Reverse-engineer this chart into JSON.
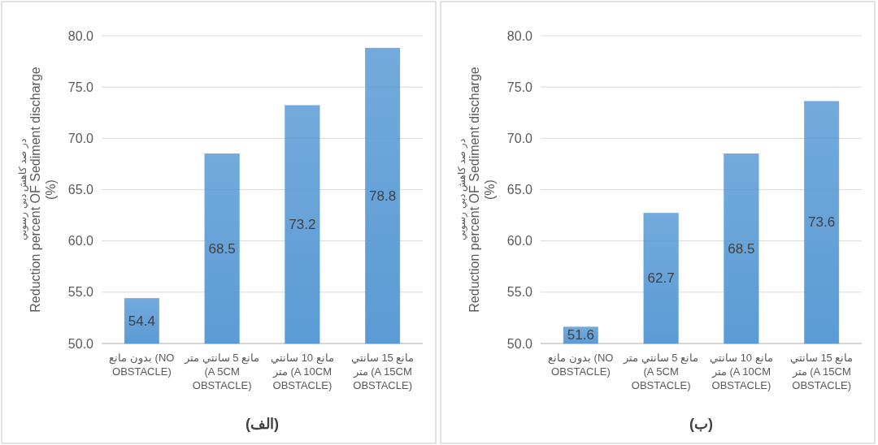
{
  "chart_data": [
    {
      "type": "bar",
      "title": "(الف)",
      "ylabel": "در صد كاهش دبي رسوبي\nReduction percent OF Sediment discharge\n(%)",
      "categories": [
        "بدون مانع (NO OBSTACLE)",
        "مانع 5 سانتي متر (A 5CM OBSTACLE)",
        "مانع 10 سانتي متر (A 10CM OBSTACLE)",
        "مانع 15 سانتي متر (A 15CM OBSTACLE)"
      ],
      "values": [
        54.4,
        68.5,
        73.2,
        78.8
      ],
      "color": "#5b9bd5",
      "data_labels": true,
      "grid": "y",
      "ylim": [
        50,
        80
      ],
      "yticks": [
        {
          "value": 50,
          "label": "50.0"
        },
        {
          "value": 55,
          "label": "55.0"
        },
        {
          "value": 60,
          "label": "60.0"
        },
        {
          "value": 65,
          "label": "65.0"
        },
        {
          "value": 70,
          "label": "70.0"
        },
        {
          "value": 75,
          "label": "75.0"
        },
        {
          "value": 80,
          "label": "80.0"
        }
      ]
    },
    {
      "type": "bar",
      "title": "(ب)",
      "ylabel": "در صد كاهش دبي رسوبي\nReduction percent OF Sediment discharge\n(%)",
      "categories": [
        "بدون مانع (NO OBSTACLE)",
        "مانع 5 سانتي متر (A 5CM OBSTACLE)",
        "مانع 10 سانتي متر (A 10CM OBSTACLE)",
        "مانع 15 سانتي متر (A 15CM OBSTACLE)"
      ],
      "values": [
        51.6,
        62.7,
        68.5,
        73.6
      ],
      "color": "#5b9bd5",
      "data_labels": true,
      "grid": "y",
      "ylim": [
        50,
        80
      ],
      "yticks": [
        {
          "value": 50,
          "label": "50.0"
        },
        {
          "value": 55,
          "label": "55.0"
        },
        {
          "value": 60,
          "label": "60.0"
        },
        {
          "value": 65,
          "label": "65.0"
        },
        {
          "value": 70,
          "label": "70.0"
        },
        {
          "value": 75,
          "label": "75.0"
        },
        {
          "value": 80,
          "label": "80.0"
        }
      ]
    }
  ]
}
